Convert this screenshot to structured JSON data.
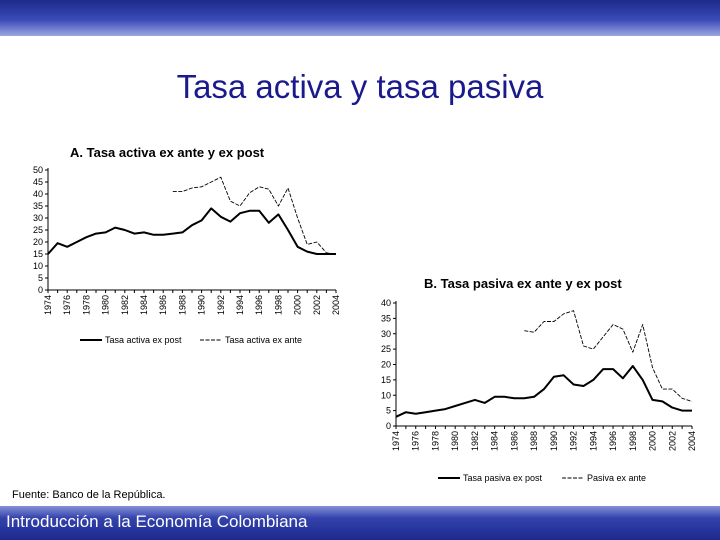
{
  "slide": {
    "title": "Tasa activa y tasa pasiva",
    "source": "Fuente: Banco de la República.",
    "footer": "Introducción a la Economía Colombiana"
  },
  "chart_data": [
    {
      "type": "line",
      "title": "A. Tasa activa ex ante y ex post",
      "ylim": [
        0,
        50
      ],
      "yticks": [
        0,
        5,
        10,
        15,
        20,
        25,
        30,
        35,
        40,
        45,
        50
      ],
      "x": [
        1974,
        1975,
        1976,
        1977,
        1978,
        1979,
        1980,
        1981,
        1982,
        1983,
        1984,
        1985,
        1986,
        1987,
        1988,
        1989,
        1990,
        1991,
        1992,
        1993,
        1994,
        1995,
        1996,
        1997,
        1998,
        1999,
        2000,
        2001,
        2002,
        2003,
        2004
      ],
      "xticks": [
        "1974",
        "1976",
        "1978",
        "1980",
        "1982",
        "1984",
        "1986",
        "1988",
        "1990",
        "1992",
        "1994",
        "1996",
        "1998",
        "2000",
        "2002",
        "2004"
      ],
      "legend_position": "bottom",
      "series": [
        {
          "name": "Tasa activa ex post",
          "style": "solid",
          "color": "#000000",
          "values": [
            15,
            19.5,
            18,
            20,
            22,
            23.5,
            24,
            26,
            25,
            23.5,
            24,
            23,
            23,
            23.5,
            24,
            27,
            29,
            34,
            30.5,
            28.5,
            32,
            33,
            33,
            28,
            31.5,
            25,
            18,
            16,
            15,
            15,
            15
          ]
        },
        {
          "name": "Tasa activa ex ante",
          "style": "dashed",
          "color": "#000000",
          "values": [
            null,
            null,
            null,
            null,
            null,
            null,
            null,
            null,
            null,
            null,
            null,
            null,
            null,
            41,
            41,
            42.5,
            43,
            45,
            47,
            37,
            35,
            40.5,
            43,
            42,
            35,
            42.5,
            30,
            19,
            20,
            15.5,
            15
          ]
        }
      ]
    },
    {
      "type": "line",
      "title": "B. Tasa pasiva ex ante y ex post",
      "ylim": [
        0,
        40
      ],
      "yticks": [
        0,
        5,
        10,
        15,
        20,
        25,
        30,
        35,
        40
      ],
      "x": [
        1974,
        1975,
        1976,
        1977,
        1978,
        1979,
        1980,
        1981,
        1982,
        1983,
        1984,
        1985,
        1986,
        1987,
        1988,
        1989,
        1990,
        1991,
        1992,
        1993,
        1994,
        1995,
        1996,
        1997,
        1998,
        1999,
        2000,
        2001,
        2002,
        2003,
        2004
      ],
      "xticks": [
        "1974",
        "1976",
        "1978",
        "1980",
        "1982",
        "1984",
        "1986",
        "1988",
        "1990",
        "1992",
        "1994",
        "1996",
        "1998",
        "2000",
        "2002",
        "2004"
      ],
      "legend_position": "bottom",
      "series": [
        {
          "name": "Tasa pasiva ex post",
          "style": "solid",
          "color": "#000000",
          "values": [
            3,
            4.5,
            4,
            4.5,
            5,
            5.5,
            6.5,
            7.5,
            8.5,
            7.5,
            9.5,
            9.5,
            9,
            9,
            9.5,
            12,
            16,
            16.5,
            13.5,
            13,
            15,
            18.5,
            18.5,
            15.5,
            19.5,
            15,
            8.5,
            8,
            6,
            5,
            5
          ]
        },
        {
          "name": "Pasiva ex ante",
          "style": "dashed",
          "color": "#000000",
          "values": [
            null,
            null,
            null,
            null,
            null,
            null,
            null,
            null,
            null,
            null,
            null,
            null,
            null,
            31,
            30.5,
            34,
            34,
            36.5,
            37.5,
            26,
            25,
            29,
            33,
            31.5,
            24,
            33,
            19,
            12,
            12,
            9,
            8
          ]
        }
      ]
    }
  ]
}
